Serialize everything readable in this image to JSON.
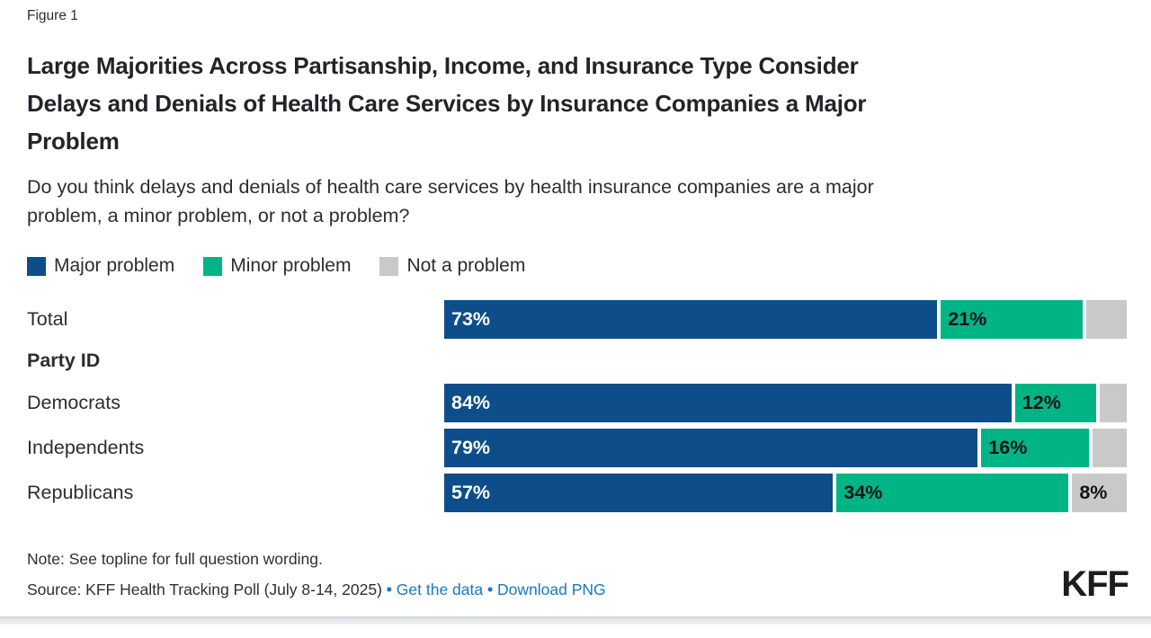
{
  "figure_label": "Figure 1",
  "title_lines": [
    "Large Majorities Across Partisanship, Income, and Insurance Type Consider",
    "Delays and Denials of Health Care Services by Insurance Companies a Major",
    "Problem"
  ],
  "subtitle_lines": [
    "Do you think delays and denials of health care services by health insurance companies are a major",
    "problem, a minor problem, or not a problem?"
  ],
  "legend": [
    {
      "label": "Major problem",
      "color": "#0d4d8a"
    },
    {
      "label": "Minor problem",
      "color": "#00b485"
    },
    {
      "label": "Not a problem",
      "color": "#c9c9c9"
    }
  ],
  "chart_data": {
    "type": "bar",
    "orientation": "horizontal",
    "stacked": true,
    "unit": "%",
    "xlim": [
      0,
      100
    ],
    "series": [
      "Major problem",
      "Minor problem",
      "Not a problem"
    ],
    "colors": {
      "Major problem": "#0d4d8a",
      "Minor problem": "#00b485",
      "Not a problem": "#c9c9c9"
    },
    "rows": [
      {
        "label": "Total",
        "values": [
          73,
          21,
          6
        ],
        "value_labels": [
          "73%",
          "21%",
          ""
        ]
      },
      {
        "label": "Party ID",
        "section": true
      },
      {
        "label": "Democrats",
        "values": [
          84,
          12,
          4
        ],
        "value_labels": [
          "84%",
          "12%",
          ""
        ]
      },
      {
        "label": "Independents",
        "values": [
          79,
          16,
          5
        ],
        "value_labels": [
          "79%",
          "16%",
          ""
        ]
      },
      {
        "label": "Republicans",
        "values": [
          57,
          34,
          8
        ],
        "value_labels": [
          "57%",
          "34%",
          "8%"
        ]
      }
    ]
  },
  "footer": {
    "note": "Note: See topline for full question wording.",
    "source_prefix": "Source: KFF Health Tracking Poll (July 8-14, 2025)",
    "separator": "•",
    "links": [
      {
        "label": "Get the data"
      },
      {
        "label": "Download PNG"
      }
    ],
    "link_color": "#1779c4",
    "logo": "KFF"
  }
}
